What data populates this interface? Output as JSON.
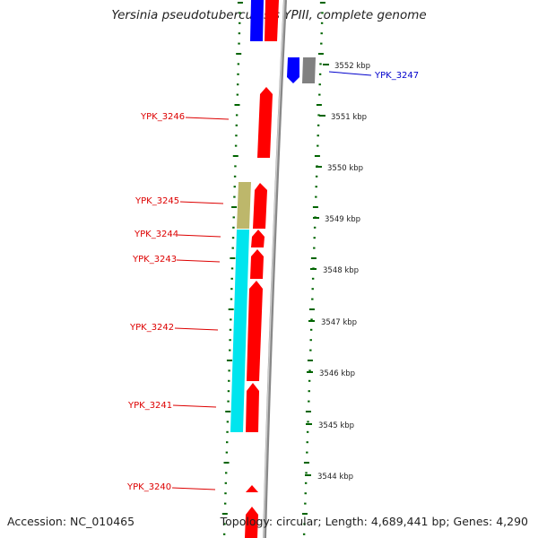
{
  "title": "Yersinia pseudotuberculosis YPIII, complete genome",
  "footer": {
    "accession": "Accession: NC_010465",
    "summary": "Topology: circular; Length: 4,689,441 bp; Genes: 4,290"
  },
  "colors": {
    "forward_gene": "#ff0000",
    "reverse_gene": "#0000ff",
    "cds_highlight": "#00e5ee",
    "khaki_feature": "#bdb76b",
    "grey_feature": "#808080",
    "tick": "#006400",
    "backbone": "#999999"
  },
  "kbp_ticks": [
    "3552 kbp",
    "3551 kbp",
    "3550 kbp",
    "3549 kbp",
    "3548 kbp",
    "3547 kbp",
    "3546 kbp",
    "3545 kbp",
    "3544 kbp"
  ],
  "genes": [
    {
      "name": "YPK_3247",
      "strand": "reverse",
      "color": "#0000ff"
    },
    {
      "name": "YPK_3246",
      "strand": "forward",
      "color": "#ff0000"
    },
    {
      "name": "YPK_3245",
      "strand": "forward",
      "color": "#ff0000"
    },
    {
      "name": "YPK_3244",
      "strand": "forward",
      "color": "#ff0000"
    },
    {
      "name": "YPK_3243",
      "strand": "forward",
      "color": "#ff0000"
    },
    {
      "name": "YPK_3242",
      "strand": "forward",
      "color": "#ff0000"
    },
    {
      "name": "YPK_3241",
      "strand": "forward",
      "color": "#ff0000"
    },
    {
      "name": "YPK_3240",
      "strand": "forward",
      "color": "#ff0000"
    }
  ]
}
